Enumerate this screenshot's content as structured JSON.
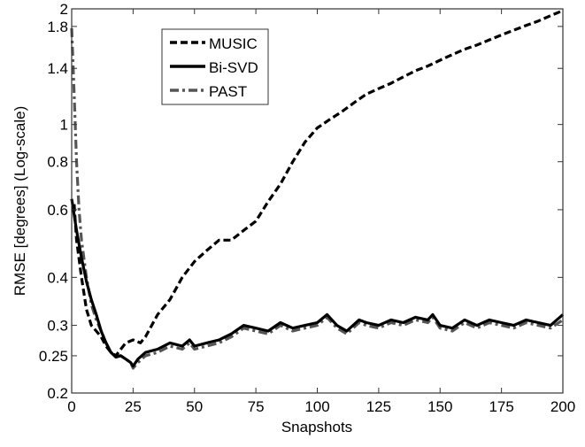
{
  "chart_data": {
    "type": "line",
    "title": "",
    "xlabel": "Snapshots",
    "ylabel": "RMSE [degrees] (Log-scale)",
    "xlim": [
      0,
      200
    ],
    "ylim": [
      0.2,
      2
    ],
    "yscale": "log",
    "grid": false,
    "legend_position": "upper-left-inset",
    "x_ticks": [
      0,
      25,
      50,
      75,
      100,
      125,
      150,
      175,
      200
    ],
    "y_ticks": [
      0.2,
      0.25,
      0.3,
      0.4,
      0.6,
      0.8,
      1,
      1.4,
      1.8,
      2
    ],
    "y_tick_labels": [
      "0.2",
      "0.25",
      "0.3",
      "0.4",
      "0.6",
      "0.8",
      "1",
      "1.4",
      "1.8",
      "2"
    ],
    "legend": [
      "MUSIC",
      "Bi-SVD",
      "PAST"
    ],
    "series": [
      {
        "name": "MUSIC",
        "style": "dashed",
        "color": "#000000",
        "x": [
          1,
          2,
          4,
          6,
          8,
          10,
          12,
          14,
          16,
          18,
          20,
          22,
          25,
          28,
          30,
          35,
          40,
          45,
          50,
          55,
          60,
          65,
          70,
          75,
          80,
          85,
          90,
          95,
          100,
          105,
          110,
          115,
          120,
          125,
          130,
          135,
          140,
          145,
          150,
          155,
          160,
          165,
          170,
          175,
          180,
          185,
          190,
          195,
          200
        ],
        "values": [
          0.62,
          0.5,
          0.4,
          0.33,
          0.3,
          0.29,
          0.28,
          0.265,
          0.255,
          0.25,
          0.26,
          0.27,
          0.275,
          0.27,
          0.28,
          0.32,
          0.35,
          0.4,
          0.44,
          0.47,
          0.5,
          0.5,
          0.53,
          0.56,
          0.63,
          0.7,
          0.8,
          0.9,
          0.98,
          1.03,
          1.08,
          1.14,
          1.2,
          1.24,
          1.28,
          1.33,
          1.38,
          1.42,
          1.47,
          1.52,
          1.57,
          1.61,
          1.66,
          1.71,
          1.76,
          1.81,
          1.86,
          1.92,
          1.98
        ]
      },
      {
        "name": "Bi-SVD",
        "style": "solid",
        "color": "#000000",
        "x": [
          0,
          2,
          4,
          6,
          8,
          10,
          12,
          14,
          16,
          18,
          20,
          22,
          24,
          25,
          27,
          30,
          35,
          40,
          45,
          48,
          50,
          55,
          60,
          65,
          70,
          75,
          80,
          85,
          90,
          95,
          100,
          104,
          108,
          112,
          117,
          120,
          125,
          130,
          135,
          140,
          145,
          147,
          150,
          155,
          160,
          165,
          170,
          175,
          180,
          185,
          190,
          195,
          200
        ],
        "values": [
          0.64,
          0.53,
          0.45,
          0.39,
          0.35,
          0.32,
          0.29,
          0.27,
          0.255,
          0.248,
          0.25,
          0.245,
          0.24,
          0.235,
          0.245,
          0.255,
          0.26,
          0.27,
          0.265,
          0.275,
          0.265,
          0.27,
          0.275,
          0.285,
          0.3,
          0.295,
          0.29,
          0.305,
          0.295,
          0.3,
          0.305,
          0.32,
          0.3,
          0.29,
          0.31,
          0.305,
          0.3,
          0.31,
          0.305,
          0.315,
          0.31,
          0.32,
          0.3,
          0.295,
          0.31,
          0.3,
          0.31,
          0.305,
          0.3,
          0.31,
          0.305,
          0.3,
          0.32
        ]
      },
      {
        "name": "PAST",
        "style": "dashdot",
        "color": "#555555",
        "x": [
          0,
          1,
          2,
          3,
          4,
          6,
          8,
          10,
          12,
          14,
          16,
          18,
          20,
          22,
          24,
          25,
          27,
          30,
          35,
          40,
          45,
          48,
          50,
          55,
          60,
          65,
          70,
          75,
          80,
          85,
          90,
          95,
          100,
          104,
          108,
          112,
          117,
          120,
          125,
          130,
          135,
          140,
          145,
          147,
          150,
          155,
          160,
          165,
          170,
          175,
          180,
          185,
          190,
          195,
          200
        ],
        "values": [
          1.78,
          1.2,
          0.8,
          0.6,
          0.5,
          0.4,
          0.34,
          0.31,
          0.29,
          0.27,
          0.255,
          0.25,
          0.25,
          0.245,
          0.24,
          0.232,
          0.24,
          0.25,
          0.255,
          0.265,
          0.26,
          0.27,
          0.26,
          0.265,
          0.27,
          0.28,
          0.295,
          0.29,
          0.285,
          0.3,
          0.29,
          0.295,
          0.3,
          0.315,
          0.295,
          0.285,
          0.305,
          0.3,
          0.295,
          0.305,
          0.3,
          0.31,
          0.305,
          0.315,
          0.295,
          0.29,
          0.305,
          0.295,
          0.305,
          0.3,
          0.295,
          0.305,
          0.3,
          0.295,
          0.31
        ]
      }
    ]
  }
}
